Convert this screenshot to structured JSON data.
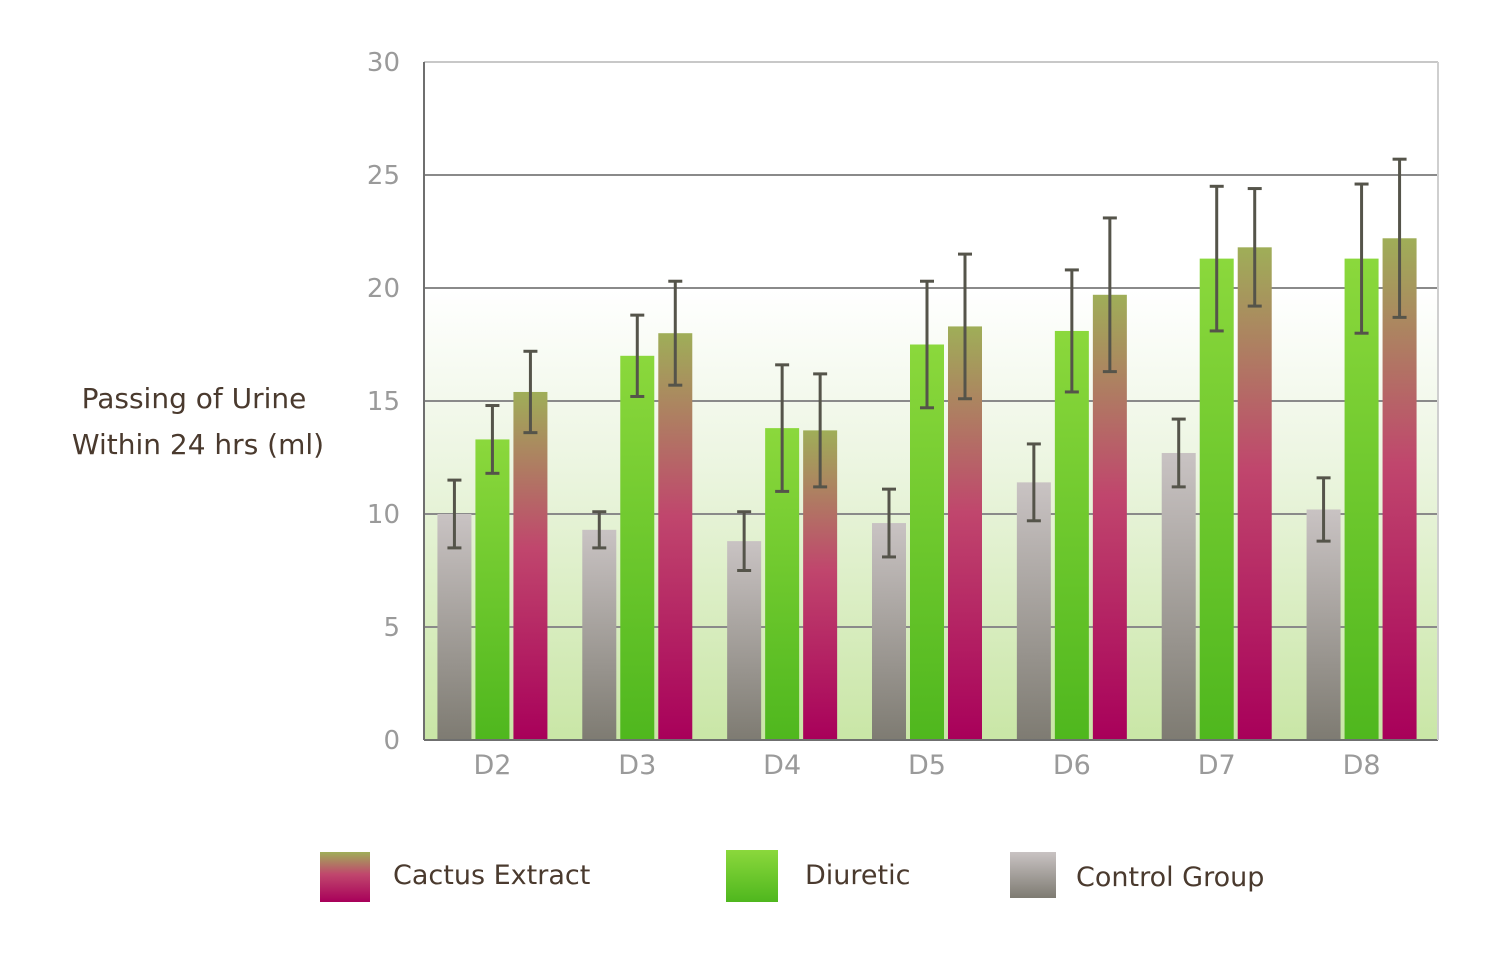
{
  "chart_data": {
    "type": "bar",
    "ylabel": [
      "Passing of Urine",
      "Within 24 hrs (ml)"
    ],
    "xlabel": "",
    "ylim": [
      0,
      30
    ],
    "yticks": [
      0,
      5,
      10,
      15,
      20,
      25,
      30
    ],
    "grid": true,
    "legend_position": "bottom",
    "categories": [
      "D2",
      "D3",
      "D4",
      "D5",
      "D6",
      "D7",
      "D8"
    ],
    "series": [
      {
        "name": "Control Group",
        "color": "#9e9a98",
        "values": [
          10.0,
          9.3,
          8.8,
          9.6,
          11.4,
          12.7,
          10.2
        ],
        "error": [
          1.5,
          0.8,
          1.3,
          1.5,
          1.7,
          1.5,
          1.4
        ]
      },
      {
        "name": "Diuretic",
        "color": "#6cc52a",
        "values": [
          13.3,
          17.0,
          13.8,
          17.5,
          18.1,
          21.3,
          21.3
        ],
        "error": [
          1.5,
          1.8,
          2.8,
          2.8,
          2.7,
          3.2,
          3.3
        ]
      },
      {
        "name": "Cactus Extract",
        "color": "#b0005a",
        "values": [
          15.4,
          18.0,
          13.7,
          18.3,
          19.7,
          21.8,
          22.2
        ],
        "error": [
          1.8,
          2.3,
          2.5,
          3.2,
          3.4,
          2.6,
          3.5
        ]
      }
    ],
    "legend": [
      "Cactus Extract",
      "Diuretic",
      "Control Group"
    ]
  }
}
